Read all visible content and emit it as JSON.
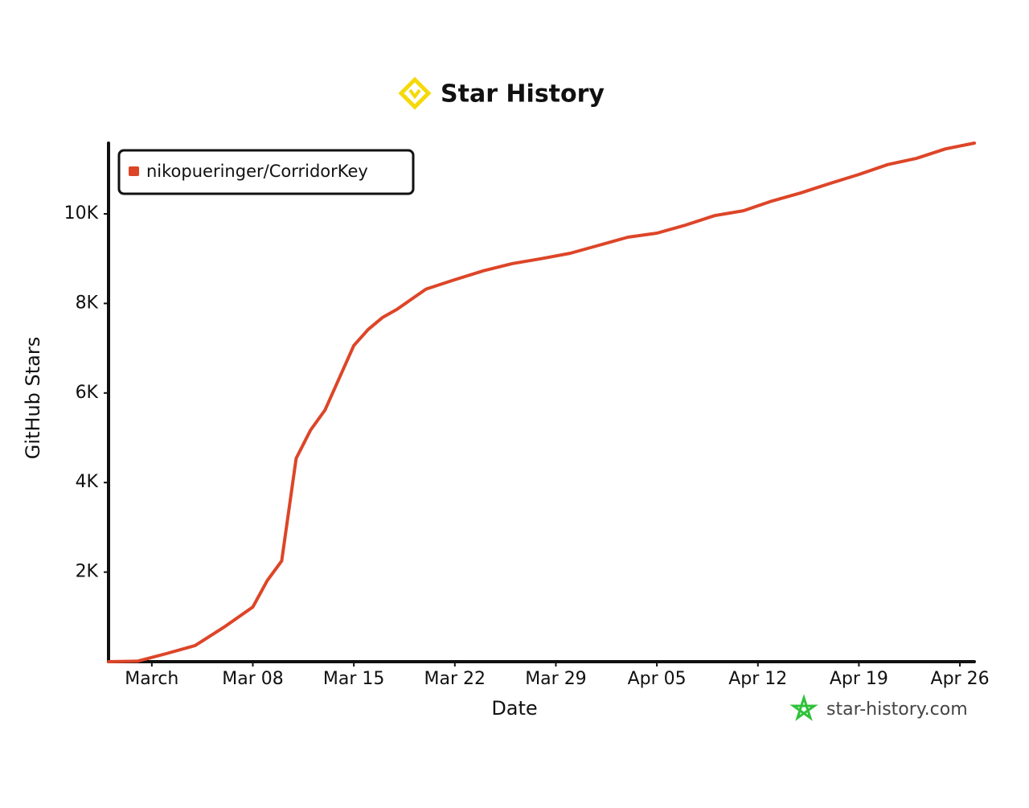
{
  "chart_data": {
    "type": "line",
    "title": "Star History",
    "x_label": "Date",
    "y_label": "GitHub Stars",
    "watermark": "star-history.com",
    "legend": "top-left",
    "x": [
      "Feb 26",
      "Feb 28",
      "Mar 02",
      "Mar 04",
      "Mar 06",
      "Mar 08",
      "Mar 09",
      "Mar 10",
      "Mar 11",
      "Mar 12",
      "Mar 13",
      "Mar 14",
      "Mar 15",
      "Mar 16",
      "Mar 17",
      "Mar 18",
      "Mar 20",
      "Mar 22",
      "Mar 24",
      "Mar 26",
      "Mar 28",
      "Mar 30",
      "Apr 01",
      "Apr 03",
      "Apr 05",
      "Apr 07",
      "Apr 09",
      "Apr 11",
      "Apr 13",
      "Apr 15",
      "Apr 17",
      "Apr 19",
      "Apr 21",
      "Apr 23",
      "Apr 25",
      "Apr 27"
    ],
    "series": [
      {
        "name": "nikopueringer/CorridorKey",
        "color": "#dd4528",
        "values": [
          0,
          10,
          180,
          360,
          770,
          1220,
          1810,
          2250,
          4540,
          5170,
          5620,
          6340,
          7060,
          7420,
          7690,
          7870,
          8320,
          8530,
          8730,
          8890,
          9000,
          9120,
          9300,
          9480,
          9570,
          9750,
          9960,
          10070,
          10290,
          10470,
          10680,
          10880,
          11100,
          11240,
          11450,
          11580
        ]
      }
    ],
    "xlim": [
      "Feb 26",
      "Apr 27"
    ],
    "xticks": [
      {
        "value": "Mar 01",
        "label": "March"
      },
      "Mar 08",
      "Mar 15",
      "Mar 22",
      "Mar 29",
      "Apr 05",
      "Apr 12",
      "Apr 19",
      "Apr 26"
    ],
    "ylim": [
      0,
      11580
    ],
    "yticks": [
      {
        "value": 2000,
        "label": "2K"
      },
      {
        "value": 4000,
        "label": "4K"
      },
      {
        "value": 6000,
        "label": "6K"
      },
      {
        "value": 8000,
        "label": "8K"
      },
      {
        "value": 10000,
        "label": "10K"
      }
    ]
  }
}
